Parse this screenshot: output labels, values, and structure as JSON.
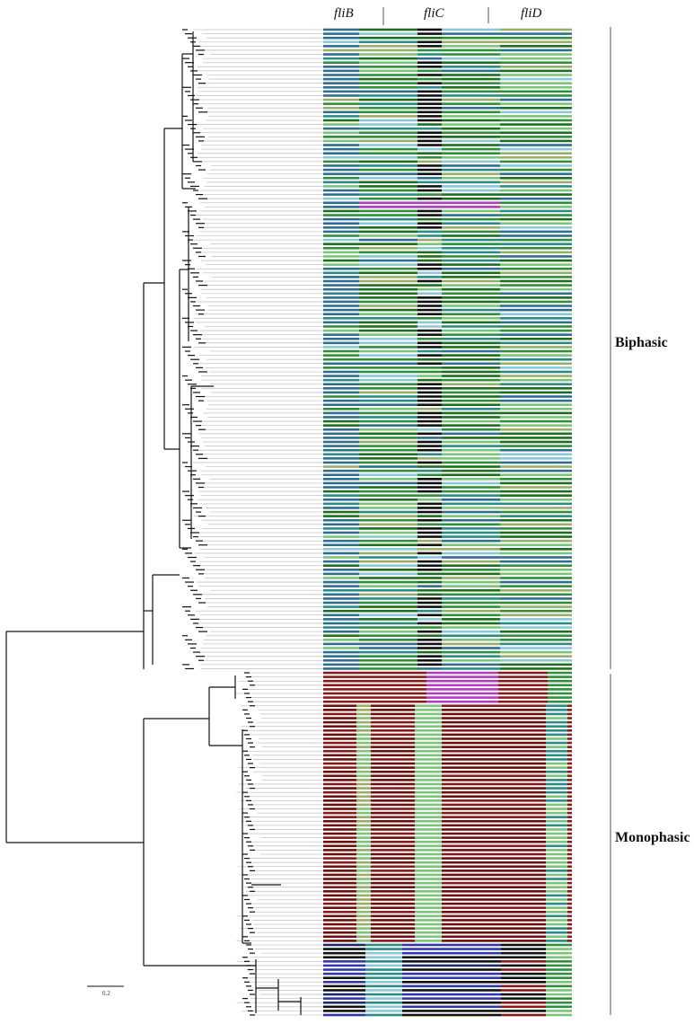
{
  "genes": [
    {
      "label": "fliB"
    },
    {
      "label": "fliC"
    },
    {
      "label": "fliD"
    }
  ],
  "groups": [
    {
      "label": "Biphasic"
    },
    {
      "label": "Monophasic"
    }
  ],
  "scale_bar": {
    "label": "0.2"
  },
  "colors": {
    "background": "#ffffff",
    "tree": "#111111",
    "tip_line": "#c8c8c8",
    "dark_green": "#1d6e1d",
    "green": "#2f8f3a",
    "light_green": "#7cc47a",
    "teal": "#2a8c86",
    "slate_blue": "#2f6e8e",
    "light_blue": "#8cc8d8",
    "olive": "#9aae6a",
    "tan": "#b8a87a",
    "magenta": "#b13cc0",
    "maroon": "#6b0f0f",
    "dark_red": "#8a1a1a",
    "blue": "#3038a8",
    "navy": "#1a2a6e",
    "black": "#111111"
  }
}
